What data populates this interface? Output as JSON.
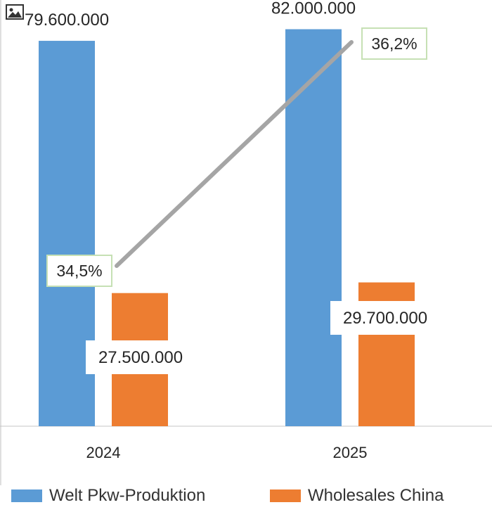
{
  "chart_data": {
    "type": "bar",
    "categories": [
      "2024",
      "2025"
    ],
    "series": [
      {
        "name": "Welt Pkw-Produktion",
        "values": [
          79600000,
          82000000
        ],
        "labels": [
          "79.600.000",
          "82.000.000"
        ],
        "color": "#5b9bd5"
      },
      {
        "name": "Wholesales China",
        "values": [
          27500000,
          29700000
        ],
        "labels": [
          "27.500.000",
          "29.700.000"
        ],
        "color": "#ed7d31"
      }
    ],
    "line_series": {
      "values": [
        34.5,
        36.2
      ],
      "labels": [
        "34,5%",
        "36,2%"
      ],
      "color": "#a5a5a5"
    },
    "ylim": [
      0,
      86000000
    ],
    "title": "",
    "xlabel": "",
    "ylabel": "",
    "legend_position": "bottom",
    "grid": false
  },
  "icons": {
    "corner": "image-icon"
  }
}
